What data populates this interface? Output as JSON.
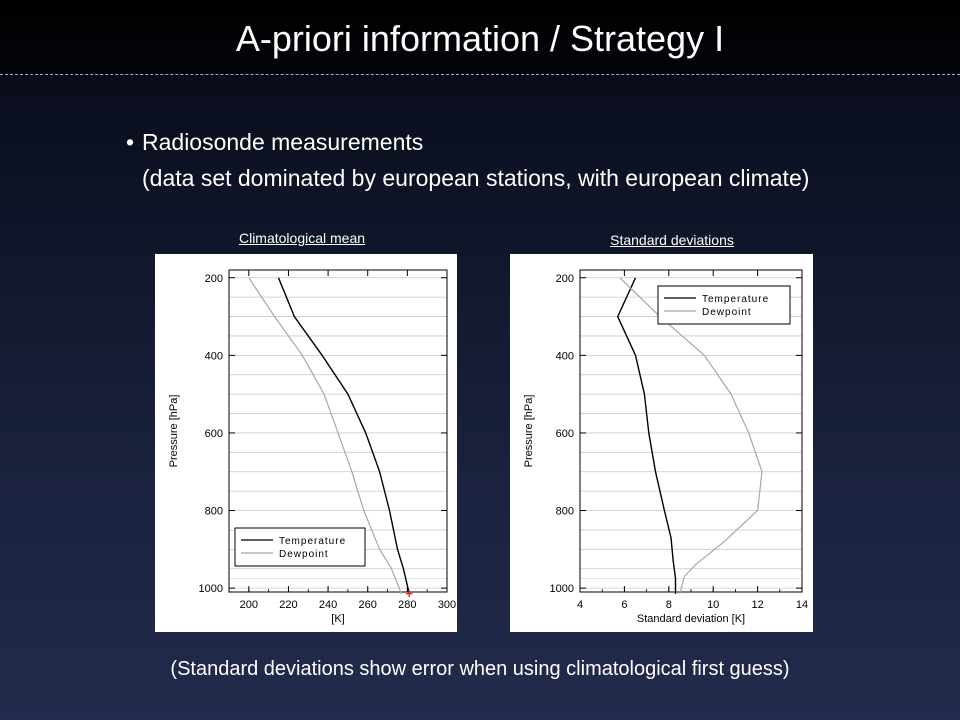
{
  "slide": {
    "title": "A-priori information / Strategy I",
    "bullet_line1": "Radiosonde measurements",
    "bullet_line2": "(data set dominated by european stations, with european climate)",
    "bullet_marker": "•",
    "footer": "(Standard deviations show error when using climatological first guess)"
  },
  "chart_data": [
    {
      "type": "line",
      "caption": "Climatological mean",
      "xlabel": "[K]",
      "ylabel": "Pressure [hPa]",
      "xlim": [
        190,
        300
      ],
      "ylim": [
        1010,
        180
      ],
      "y_inverted": true,
      "xticks": [
        200,
        220,
        240,
        260,
        280,
        300
      ],
      "yticks": [
        200,
        400,
        600,
        800,
        1000
      ],
      "grid": true,
      "legend_position": "bottom-left",
      "marker": {
        "symbol": "+",
        "x": 281,
        "y": 1015,
        "color": "#e03020"
      },
      "series": [
        {
          "name": "Temperature",
          "color": "#000000",
          "points": [
            [
              215,
              200
            ],
            [
              223,
              300
            ],
            [
              237,
              400
            ],
            [
              250,
              500
            ],
            [
              259,
              600
            ],
            [
              266,
              700
            ],
            [
              271,
              800
            ],
            [
              275,
              900
            ],
            [
              278,
              950
            ],
            [
              281,
              1015
            ]
          ]
        },
        {
          "name": "Dewpoint",
          "color": "#b8a0a4",
          "points": [
            [
              200,
              200
            ],
            [
              213,
              300
            ],
            [
              227,
              400
            ],
            [
              238,
              500
            ],
            [
              245,
              600
            ],
            [
              252,
              700
            ],
            [
              258,
              800
            ],
            [
              266,
              900
            ],
            [
              272,
              950
            ],
            [
              277,
              1015
            ]
          ]
        }
      ]
    },
    {
      "type": "line",
      "caption": "Standard deviations",
      "xlabel": "Standard deviation [K]",
      "ylabel": "Pressure [hPa]",
      "xlim": [
        4,
        14
      ],
      "ylim": [
        1010,
        180
      ],
      "y_inverted": true,
      "xticks": [
        4,
        6,
        8,
        10,
        12,
        14
      ],
      "yticks": [
        200,
        400,
        600,
        800,
        1000
      ],
      "grid": true,
      "legend_position": "top-right",
      "series": [
        {
          "name": "Temperature",
          "color": "#000000",
          "points": [
            [
              6.5,
              200
            ],
            [
              5.7,
              300
            ],
            [
              6.5,
              400
            ],
            [
              6.9,
              500
            ],
            [
              7.1,
              600
            ],
            [
              7.4,
              700
            ],
            [
              7.8,
              800
            ],
            [
              8.1,
              870
            ],
            [
              8.2,
              930
            ],
            [
              8.3,
              975
            ],
            [
              8.3,
              1015
            ]
          ]
        },
        {
          "name": "Dewpoint",
          "color": "#b8a0a4",
          "points": [
            [
              5.8,
              200
            ],
            [
              7.6,
              300
            ],
            [
              9.6,
              400
            ],
            [
              10.8,
              500
            ],
            [
              11.6,
              600
            ],
            [
              12.2,
              700
            ],
            [
              12.0,
              800
            ],
            [
              10.5,
              880
            ],
            [
              9.2,
              940
            ],
            [
              8.7,
              970
            ],
            [
              8.5,
              1015
            ]
          ]
        }
      ]
    }
  ]
}
